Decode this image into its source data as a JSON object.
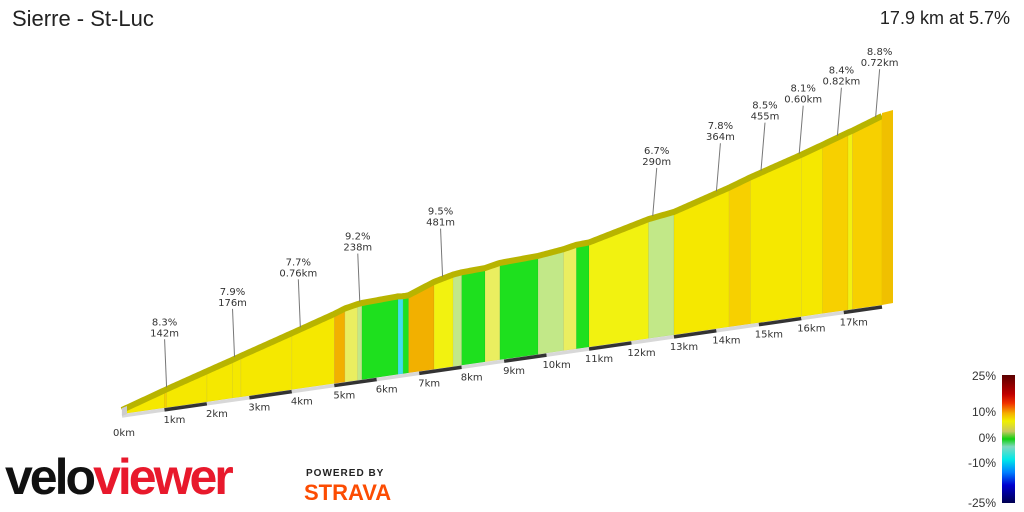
{
  "header": {
    "title": "Sierre - St-Luc",
    "summary": "17.9 km at 5.7%"
  },
  "chart_data": {
    "type": "area",
    "title": "Sierre - St-Luc",
    "xlabel": "",
    "ylabel": "",
    "total_km": 17.9,
    "x_ticks": [
      "0km",
      "1km",
      "2km",
      "3km",
      "4km",
      "5km",
      "6km",
      "7km",
      "8km",
      "9km",
      "10km",
      "11km",
      "12km",
      "13km",
      "14km",
      "15km",
      "16km",
      "17km"
    ],
    "segments": [
      {
        "from_km": 0,
        "to_km": 1,
        "gradient": 8.0
      },
      {
        "from_km": 1,
        "to_km": 1.05,
        "gradient": 8.3
      },
      {
        "from_km": 1.05,
        "to_km": 2,
        "gradient": 7.6
      },
      {
        "from_km": 2,
        "to_km": 2.6,
        "gradient": 7.5
      },
      {
        "from_km": 2.6,
        "to_km": 2.8,
        "gradient": 7.9
      },
      {
        "from_km": 2.8,
        "to_km": 4,
        "gradient": 7.6
      },
      {
        "from_km": 4,
        "to_km": 5,
        "gradient": 7.7
      },
      {
        "from_km": 5,
        "to_km": 5.25,
        "gradient": 9.2
      },
      {
        "from_km": 5.25,
        "to_km": 5.55,
        "gradient": 5
      },
      {
        "from_km": 5.55,
        "to_km": 5.65,
        "gradient": 3
      },
      {
        "from_km": 5.65,
        "to_km": 6.5,
        "gradient": 1
      },
      {
        "from_km": 6.5,
        "to_km": 6.62,
        "gradient": -3
      },
      {
        "from_km": 6.62,
        "to_km": 6.75,
        "gradient": 1
      },
      {
        "from_km": 6.75,
        "to_km": 7.35,
        "gradient": 9.5
      },
      {
        "from_km": 7.35,
        "to_km": 7.8,
        "gradient": 6
      },
      {
        "from_km": 7.8,
        "to_km": 8.0,
        "gradient": 3
      },
      {
        "from_km": 8.0,
        "to_km": 8.55,
        "gradient": 1
      },
      {
        "from_km": 8.55,
        "to_km": 8.9,
        "gradient": 5
      },
      {
        "from_km": 8.9,
        "to_km": 9.8,
        "gradient": 1
      },
      {
        "from_km": 9.8,
        "to_km": 10.4,
        "gradient": 3
      },
      {
        "from_km": 10.4,
        "to_km": 10.7,
        "gradient": 5
      },
      {
        "from_km": 10.7,
        "to_km": 11.0,
        "gradient": 1
      },
      {
        "from_km": 11.0,
        "to_km": 12.4,
        "gradient": 6.2
      },
      {
        "from_km": 12.4,
        "to_km": 13.0,
        "gradient": 3.5
      },
      {
        "from_km": 13.0,
        "to_km": 14.3,
        "gradient": 7.4
      },
      {
        "from_km": 14.3,
        "to_km": 14.8,
        "gradient": 8.5
      },
      {
        "from_km": 14.8,
        "to_km": 16.0,
        "gradient": 7.5
      },
      {
        "from_km": 16.0,
        "to_km": 16.5,
        "gradient": 8.1
      },
      {
        "from_km": 16.5,
        "to_km": 17.1,
        "gradient": 8.4
      },
      {
        "from_km": 17.1,
        "to_km": 17.2,
        "gradient": 7
      },
      {
        "from_km": 17.2,
        "to_km": 17.9,
        "gradient": 8.8
      }
    ],
    "annotations": [
      {
        "km": 1.05,
        "gradient": "8.3%",
        "length": "142m"
      },
      {
        "km": 2.65,
        "gradient": "7.9%",
        "length": "176m"
      },
      {
        "km": 4.2,
        "gradient": "7.7%",
        "length": "0.76km"
      },
      {
        "km": 5.6,
        "gradient": "9.2%",
        "length": "238m"
      },
      {
        "km": 7.55,
        "gradient": "9.5%",
        "length": "481m"
      },
      {
        "km": 12.5,
        "gradient": "6.7%",
        "length": "290m"
      },
      {
        "km": 14.0,
        "gradient": "7.8%",
        "length": "364m"
      },
      {
        "km": 15.05,
        "gradient": "8.5%",
        "length": "455m"
      },
      {
        "km": 15.95,
        "gradient": "8.1%",
        "length": "0.60km"
      },
      {
        "km": 16.85,
        "gradient": "8.4%",
        "length": "0.82km"
      },
      {
        "km": 17.75,
        "gradient": "8.8%",
        "length": "0.72km"
      }
    ],
    "legend": {
      "labels": [
        "25%",
        "10%",
        "0%",
        "-10%",
        "-25%"
      ],
      "range": [
        -25,
        25
      ]
    },
    "colors": {
      "edge": "#b8b400",
      "side": "#8f8a00",
      "base_dark": "#333333",
      "base_light": "#d8d8d8"
    }
  },
  "branding": {
    "logo_part1": "velo",
    "logo_part2": "viewer",
    "powered": "POWERED BY",
    "strava": "STRAVA"
  }
}
